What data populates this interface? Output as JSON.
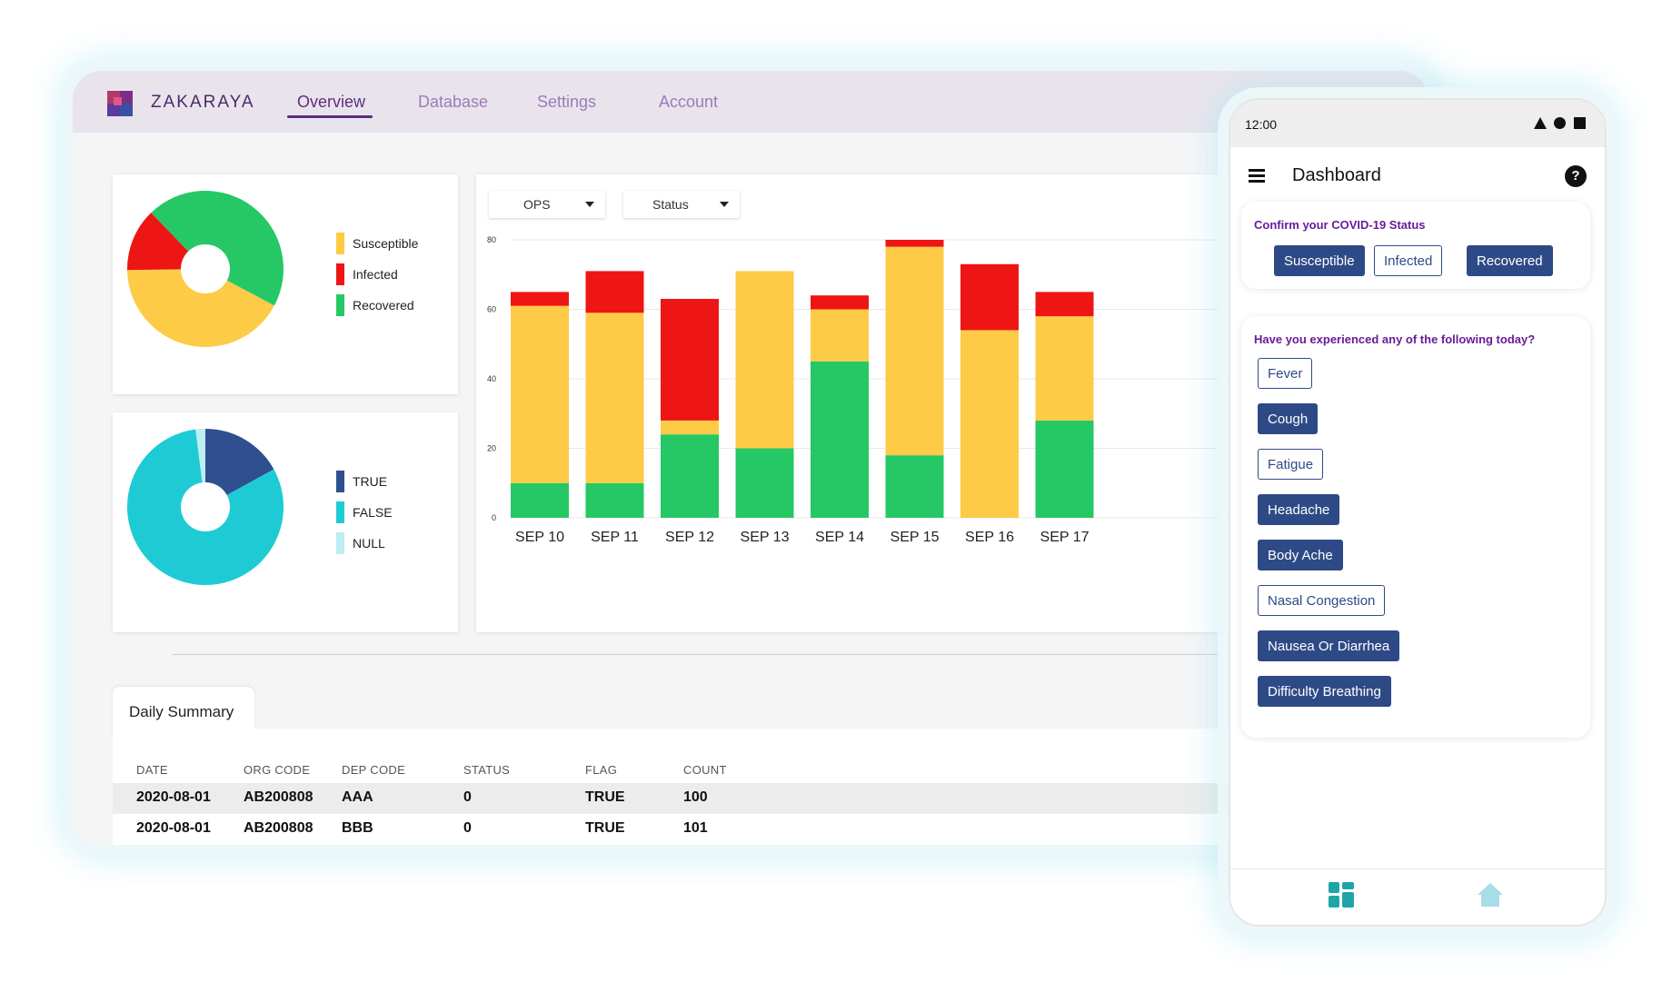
{
  "desktop": {
    "brand": "ZAKARAYA",
    "nav": [
      {
        "label": "Overview",
        "active": true
      },
      {
        "label": "Database",
        "active": false
      },
      {
        "label": "Settings",
        "active": false
      },
      {
        "label": "Account",
        "active": false
      }
    ],
    "filters": {
      "ops_label": "OPS",
      "status_label": "Status"
    },
    "summary_tab_label": "Daily Summary",
    "table": {
      "headers": [
        "DATE",
        "ORG CODE",
        "DEP CODE",
        "STATUS",
        "FLAG",
        "COUNT"
      ],
      "rows": [
        [
          "2020-08-01",
          "AB200808",
          "AAA",
          "0",
          "TRUE",
          "100"
        ],
        [
          "2020-08-01",
          "AB200808",
          "BBB",
          "0",
          "TRUE",
          "101"
        ]
      ]
    }
  },
  "colors": {
    "susceptible": "#fecb47",
    "infected": "#ee1515",
    "recovered": "#25c865",
    "true": "#2f4f8f",
    "false": "#1ecbd4",
    "null": "#bdeef2",
    "accent": "#5b2d82",
    "chip": "#2e4a86"
  },
  "chart_data": [
    {
      "type": "pie",
      "variant": "donut",
      "labels": [
        "Susceptible",
        "Infected",
        "Recovered"
      ],
      "values": [
        42,
        13,
        45
      ],
      "legend": "right"
    },
    {
      "type": "pie",
      "variant": "donut",
      "labels": [
        "TRUE",
        "FALSE",
        "NULL"
      ],
      "values": [
        17,
        81,
        2
      ],
      "legend": "right"
    },
    {
      "type": "bar",
      "stacked": true,
      "categories": [
        "SEP 10",
        "SEP 11",
        "SEP 12",
        "SEP 13",
        "SEP 14",
        "SEP 15",
        "SEP 16",
        "SEP 17"
      ],
      "series": [
        {
          "name": "Recovered",
          "values": [
            10,
            10,
            24,
            20,
            45,
            18,
            0,
            28
          ]
        },
        {
          "name": "Susceptible",
          "values": [
            51,
            49,
            4,
            51,
            15,
            60,
            54,
            30
          ]
        },
        {
          "name": "Infected",
          "values": [
            4,
            12,
            35,
            0,
            4,
            2,
            19,
            7
          ]
        }
      ],
      "yticks": [
        0,
        20,
        40,
        60,
        80
      ],
      "ylim": [
        0,
        80
      ],
      "grid": true
    }
  ],
  "phone": {
    "time": "12:00",
    "title": "Dashboard",
    "status_card": {
      "title": "Confirm your COVID-19 Status",
      "options": [
        {
          "label": "Susceptible",
          "selected": true
        },
        {
          "label": "Infected",
          "selected": false
        },
        {
          "label": "Recovered",
          "selected": true
        }
      ]
    },
    "symptom_card": {
      "title": "Have you experienced any of the following today?",
      "options": [
        {
          "label": "Fever",
          "selected": false
        },
        {
          "label": "Cough",
          "selected": true
        },
        {
          "label": "Fatigue",
          "selected": false
        },
        {
          "label": "Headache",
          "selected": true
        },
        {
          "label": "Body Ache",
          "selected": true
        },
        {
          "label": "Nasal Congestion",
          "selected": false
        },
        {
          "label": "Nausea Or Diarrhea",
          "selected": true
        },
        {
          "label": "Difficulty Breathing",
          "selected": true
        }
      ]
    },
    "bottom_nav": [
      {
        "icon": "dashboard-icon",
        "color": "#1fa5a8"
      },
      {
        "icon": "home-icon",
        "color": "#a6dde6"
      }
    ]
  }
}
